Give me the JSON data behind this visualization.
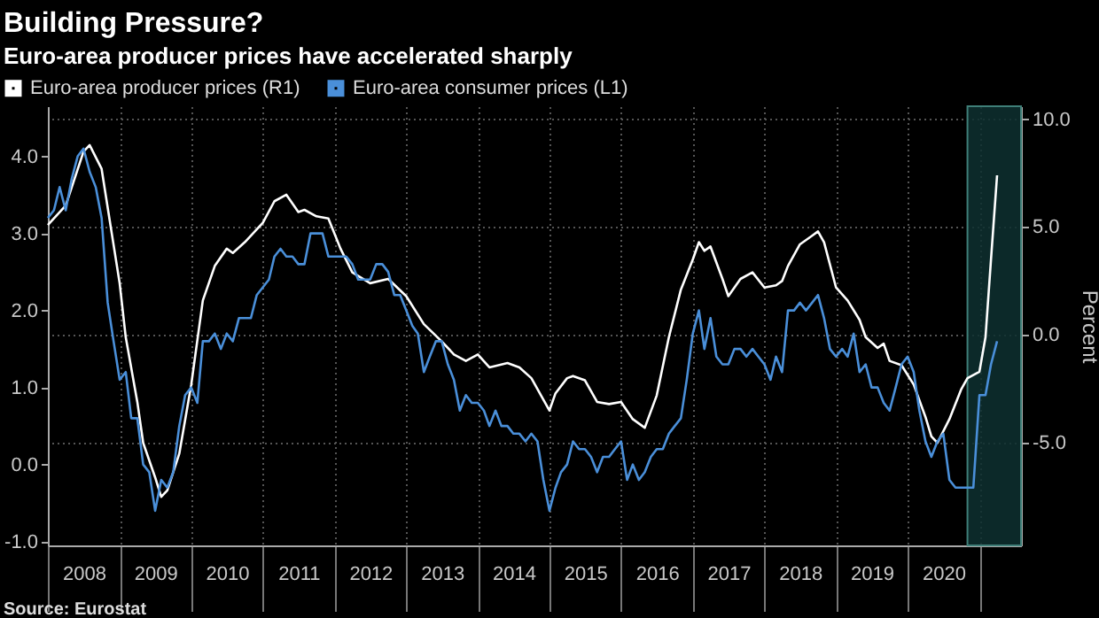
{
  "chart_data": {
    "type": "line",
    "title": "Building Pressure?",
    "subtitle": "Euro-area producer prices have accelerated sharply",
    "ylabel": null,
    "y2label": "Percent",
    "annotations": [
      "Source: Eurostat"
    ],
    "x": [
      "2008-01",
      "2008-02",
      "2008-03",
      "2008-04",
      "2008-05",
      "2008-06",
      "2008-07",
      "2008-08",
      "2008-09",
      "2008-10",
      "2008-11",
      "2008-12",
      "2009-01",
      "2009-02",
      "2009-03",
      "2009-04",
      "2009-05",
      "2009-06",
      "2009-07",
      "2009-08",
      "2009-09",
      "2009-10",
      "2009-11",
      "2009-12",
      "2010-01",
      "2010-02",
      "2010-03",
      "2010-04",
      "2010-05",
      "2010-06",
      "2010-07",
      "2010-08",
      "2010-09",
      "2010-10",
      "2010-11",
      "2010-12",
      "2011-01",
      "2011-02",
      "2011-03",
      "2011-04",
      "2011-05",
      "2011-06",
      "2011-07",
      "2011-08",
      "2011-09",
      "2011-10",
      "2011-11",
      "2011-12",
      "2012-01",
      "2012-02",
      "2012-03",
      "2012-04",
      "2012-05",
      "2012-06",
      "2012-07",
      "2012-08",
      "2012-09",
      "2012-10",
      "2012-11",
      "2012-12",
      "2013-01",
      "2013-02",
      "2013-03",
      "2013-04",
      "2013-05",
      "2013-06",
      "2013-07",
      "2013-08",
      "2013-09",
      "2013-10",
      "2013-11",
      "2013-12",
      "2014-01",
      "2014-02",
      "2014-03",
      "2014-04",
      "2014-05",
      "2014-06",
      "2014-07",
      "2014-08",
      "2014-09",
      "2014-10",
      "2014-11",
      "2014-12",
      "2015-01",
      "2015-02",
      "2015-03",
      "2015-04",
      "2015-05",
      "2015-06",
      "2015-07",
      "2015-08",
      "2015-09",
      "2015-10",
      "2015-11",
      "2015-12",
      "2016-01",
      "2016-02",
      "2016-03",
      "2016-04",
      "2016-05",
      "2016-06",
      "2016-07",
      "2016-08",
      "2016-09",
      "2016-10",
      "2016-11",
      "2016-12",
      "2017-01",
      "2017-02",
      "2017-03",
      "2017-04",
      "2017-05",
      "2017-06",
      "2017-07",
      "2017-08",
      "2017-09",
      "2017-10",
      "2017-11",
      "2017-12",
      "2018-01",
      "2018-02",
      "2018-03",
      "2018-04",
      "2018-05",
      "2018-06",
      "2018-07",
      "2018-08",
      "2018-09",
      "2018-10",
      "2018-11",
      "2018-12",
      "2019-01",
      "2019-02",
      "2019-03",
      "2019-04",
      "2019-05",
      "2019-06",
      "2019-07",
      "2019-08",
      "2019-09",
      "2019-10",
      "2019-11",
      "2019-12",
      "2020-01",
      "2020-02",
      "2020-03",
      "2020-04",
      "2020-05",
      "2020-06",
      "2020-07",
      "2020-08",
      "2020-09",
      "2020-10",
      "2020-11",
      "2020-12",
      "2021-01",
      "2021-02",
      "2021-03",
      "2021-04"
    ],
    "series": [
      {
        "name": "Euro-area producer prices (R1)",
        "color": "#ffffff",
        "axis": "y2",
        "x": [
          "2008-01",
          "2008-04",
          "2008-07",
          "2008-08",
          "2008-10",
          "2008-11",
          "2009-01",
          "2009-02",
          "2009-04",
          "2009-05",
          "2009-07",
          "2009-08",
          "2009-09",
          "2009-11",
          "2010-01",
          "2010-03",
          "2010-05",
          "2010-07",
          "2010-08",
          "2010-10",
          "2011-01",
          "2011-03",
          "2011-05",
          "2011-07",
          "2011-08",
          "2011-10",
          "2011-12",
          "2012-02",
          "2012-04",
          "2012-07",
          "2012-10",
          "2013-01",
          "2013-04",
          "2013-07",
          "2013-09",
          "2013-11",
          "2014-01",
          "2014-03",
          "2014-06",
          "2014-08",
          "2014-10",
          "2014-12",
          "2015-01",
          "2015-02",
          "2015-04",
          "2015-05",
          "2015-07",
          "2015-09",
          "2015-11",
          "2016-01",
          "2016-03",
          "2016-05",
          "2016-07",
          "2016-09",
          "2016-11",
          "2017-01",
          "2017-02",
          "2017-03",
          "2017-04",
          "2017-06",
          "2017-07",
          "2017-09",
          "2017-11",
          "2018-01",
          "2018-03",
          "2018-04",
          "2018-05",
          "2018-07",
          "2018-09",
          "2018-10",
          "2018-11",
          "2019-01",
          "2019-03",
          "2019-05",
          "2019-06",
          "2019-08",
          "2019-09",
          "2019-10",
          "2019-12",
          "2020-02",
          "2020-04",
          "2020-05",
          "2020-06",
          "2020-08",
          "2020-10",
          "2020-11",
          "2021-01",
          "2021-02",
          "2021-03",
          "2021-04"
        ],
        "values": [
          5.1,
          6.0,
          8.5,
          8.8,
          7.7,
          5.9,
          2.4,
          -0.1,
          -3.1,
          -5.0,
          -6.6,
          -7.5,
          -7.2,
          -5.5,
          -2.3,
          1.6,
          3.2,
          4.0,
          3.8,
          4.3,
          5.2,
          6.2,
          6.5,
          5.7,
          5.8,
          5.5,
          5.4,
          4.0,
          2.9,
          2.4,
          2.6,
          1.8,
          0.5,
          -0.3,
          -0.9,
          -1.2,
          -0.9,
          -1.5,
          -1.3,
          -1.5,
          -2.0,
          -3.0,
          -3.5,
          -2.7,
          -2.0,
          -1.9,
          -2.1,
          -3.1,
          -3.2,
          -3.1,
          -3.9,
          -4.3,
          -2.8,
          -0.1,
          2.1,
          3.5,
          4.3,
          3.9,
          4.1,
          2.6,
          1.8,
          2.6,
          2.9,
          2.2,
          2.3,
          2.5,
          3.2,
          4.2,
          4.6,
          4.8,
          4.3,
          2.2,
          1.6,
          0.7,
          -0.1,
          -0.6,
          -0.4,
          -1.2,
          -1.4,
          -2.3,
          -3.8,
          -4.7,
          -5.0,
          -3.9,
          -2.5,
          -2.0,
          -1.7,
          -0.1,
          3.5,
          7.4
        ]
      },
      {
        "name": "Euro-area consumer prices (L1)",
        "color": "#4a8fd9",
        "axis": "y",
        "values": [
          3.2,
          3.3,
          3.6,
          3.3,
          3.7,
          4.0,
          4.1,
          3.8,
          3.6,
          3.2,
          2.1,
          1.6,
          1.1,
          1.2,
          0.6,
          0.6,
          0.0,
          -0.1,
          -0.6,
          -0.2,
          -0.3,
          -0.1,
          0.5,
          0.9,
          1.0,
          0.8,
          1.6,
          1.6,
          1.7,
          1.5,
          1.7,
          1.6,
          1.9,
          1.9,
          1.9,
          2.2,
          2.3,
          2.4,
          2.7,
          2.8,
          2.7,
          2.7,
          2.6,
          2.6,
          3.0,
          3.0,
          3.0,
          2.7,
          2.7,
          2.7,
          2.7,
          2.6,
          2.4,
          2.4,
          2.4,
          2.6,
          2.6,
          2.5,
          2.2,
          2.2,
          2.0,
          1.8,
          1.7,
          1.2,
          1.4,
          1.6,
          1.6,
          1.3,
          1.1,
          0.7,
          0.9,
          0.8,
          0.8,
          0.7,
          0.5,
          0.7,
          0.5,
          0.5,
          0.4,
          0.4,
          0.3,
          0.4,
          0.3,
          -0.2,
          -0.6,
          -0.3,
          -0.1,
          0.0,
          0.3,
          0.2,
          0.2,
          0.1,
          -0.1,
          0.1,
          0.1,
          0.2,
          0.3,
          -0.2,
          0.0,
          -0.2,
          -0.1,
          0.1,
          0.2,
          0.2,
          0.4,
          0.5,
          0.6,
          1.1,
          1.7,
          2.0,
          1.5,
          1.9,
          1.4,
          1.3,
          1.3,
          1.5,
          1.5,
          1.4,
          1.5,
          1.4,
          1.3,
          1.1,
          1.4,
          1.2,
          2.0,
          2.0,
          2.1,
          2.0,
          2.1,
          2.2,
          1.9,
          1.5,
          1.4,
          1.5,
          1.4,
          1.7,
          1.2,
          1.3,
          1.0,
          1.0,
          0.8,
          0.7,
          1.0,
          1.3,
          1.4,
          1.2,
          0.7,
          0.3,
          0.1,
          0.3,
          0.4,
          -0.2,
          -0.3,
          -0.3,
          -0.3,
          -0.3,
          0.9,
          0.9,
          1.3,
          1.6
        ]
      }
    ],
    "xlim": [
      "2008-01",
      "2021-08"
    ],
    "xticks": [
      {
        "value": "2008",
        "label": null
      },
      {
        "value": "2009",
        "label": null
      },
      {
        "value": "2010",
        "label": null
      },
      {
        "value": "2011",
        "label": null
      },
      {
        "value": "2012",
        "label": null
      },
      {
        "value": "2013",
        "label": null
      },
      {
        "value": "2014",
        "label": null
      },
      {
        "value": "2015",
        "label": null
      },
      {
        "value": "2016",
        "label": null
      },
      {
        "value": "2017",
        "label": null
      },
      {
        "value": "2018",
        "label": null
      },
      {
        "value": "2019",
        "label": null
      },
      {
        "value": "2020",
        "label": null
      },
      {
        "value": "2021",
        "label": null
      },
      {
        "value": "2008-07-02",
        "label": "2008"
      },
      {
        "value": "2009-07-02",
        "label": "2009"
      },
      {
        "value": "2010-07-02",
        "label": "2010"
      },
      {
        "value": "2011-07-02",
        "label": "2011"
      },
      {
        "value": "2012-07-02",
        "label": "2012"
      },
      {
        "value": "2013-07-02",
        "label": "2013"
      },
      {
        "value": "2014-07-02",
        "label": "2014"
      },
      {
        "value": "2015-07-02",
        "label": "2015"
      },
      {
        "value": "2016-07-02",
        "label": "2016"
      },
      {
        "value": "2017-07-02",
        "label": "2017"
      },
      {
        "value": "2018-07-02",
        "label": "2018"
      },
      {
        "value": "2019-07-02",
        "label": "2019"
      },
      {
        "value": "2020-07-02",
        "label": "2020"
      }
    ],
    "ylim": [
      -1.05,
      4.65
    ],
    "yticks": [
      {
        "value": -1,
        "label": "-1.0"
      },
      {
        "value": 0,
        "label": "0.0"
      },
      {
        "value": 1,
        "label": "1.0"
      },
      {
        "value": 2,
        "label": "2.0"
      },
      {
        "value": 3,
        "label": "3.0"
      },
      {
        "value": 4,
        "label": "4.0"
      }
    ],
    "y2lim": [
      -9.75,
      10.6
    ],
    "y2ticks": [
      {
        "value": -5,
        "label": "-5.0"
      },
      {
        "value": 0,
        "label": "0.0"
      },
      {
        "value": 5,
        "label": "5.0"
      },
      {
        "value": 10,
        "label": "10.0"
      }
    ],
    "bands": [
      {
        "axis": "x",
        "from": "2020-11",
        "to": "2021-08",
        "label": null,
        "color": "#0e3030"
      }
    ],
    "grid": true,
    "legend": "top left",
    "line_style": "solid",
    "marker": "none"
  }
}
